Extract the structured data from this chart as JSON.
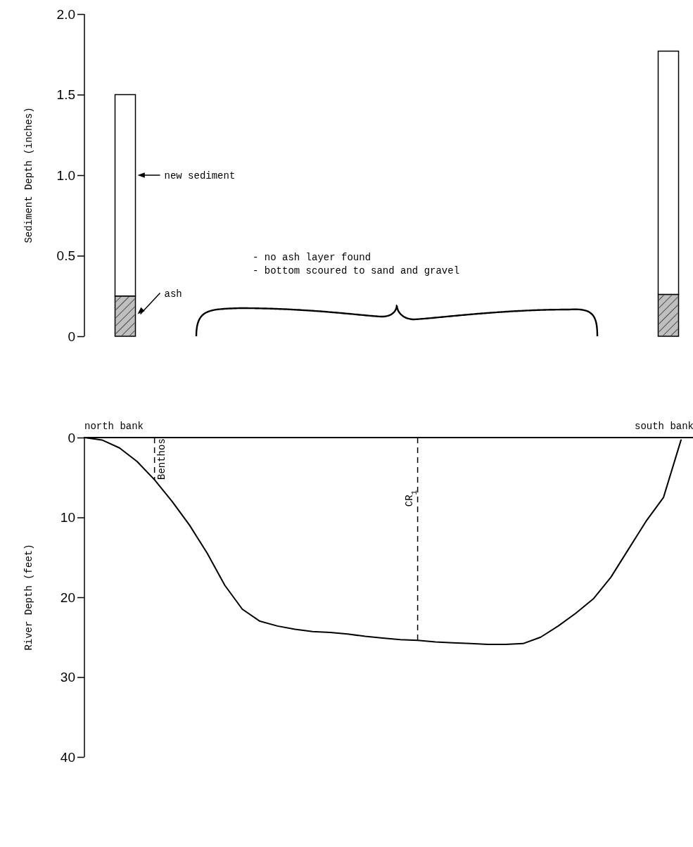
{
  "chart_data": [
    {
      "type": "bar",
      "ylabel": "Sediment Depth (inches)",
      "categories": [
        null,
        null
      ],
      "stacked": true,
      "series": [
        {
          "name": "ash",
          "color": "#bfbfbf",
          "values": [
            0.25,
            0.26
          ]
        },
        {
          "name": "new sediment",
          "color": "#ffffff",
          "values": [
            1.25,
            1.51
          ]
        }
      ],
      "ylim": [
        0,
        2
      ],
      "yticks": [
        0,
        0.5,
        {
          "value": 1,
          "label": "1.0"
        },
        1.5,
        {
          "value": 2,
          "label": "2.0"
        }
      ],
      "annotations": [
        "- no ash layer found",
        "- bottom scoured to sand and gravel"
      ]
    },
    {
      "type": "line",
      "ylabel": "River Depth (feet)",
      "categories": [
        null,
        null,
        null,
        null,
        null,
        null,
        null,
        null,
        null,
        null,
        null,
        null,
        null,
        null,
        null,
        null,
        null,
        null,
        null,
        null,
        null,
        null,
        null,
        null,
        null,
        null,
        null,
        null,
        null,
        null,
        null,
        null,
        null,
        null,
        null
      ],
      "series": [
        {
          "color": "#000000",
          "values": [
            0,
            0.3,
            1.3,
            3,
            5.3,
            8,
            11,
            14.5,
            18.5,
            21.5,
            23,
            23.6,
            24,
            24.3,
            24.4,
            24.6,
            24.9,
            25.1,
            25.3,
            25.4,
            25.6,
            25.7,
            25.8,
            25.9,
            25.9,
            25.8,
            25,
            23.6,
            22,
            20.2,
            17.5,
            14,
            10.5,
            7.5,
            0.3
          ]
        }
      ],
      "ylim": [
        40,
        0
      ],
      "yticks": [
        0,
        10,
        20,
        30,
        40
      ],
      "marker": "none",
      "ref_lines": [
        {
          "axis": "y",
          "value": 0
        }
      ],
      "annotations": [
        "north bank",
        "south bank",
        "Benthos",
        "CR$_{1}$"
      ]
    }
  ]
}
